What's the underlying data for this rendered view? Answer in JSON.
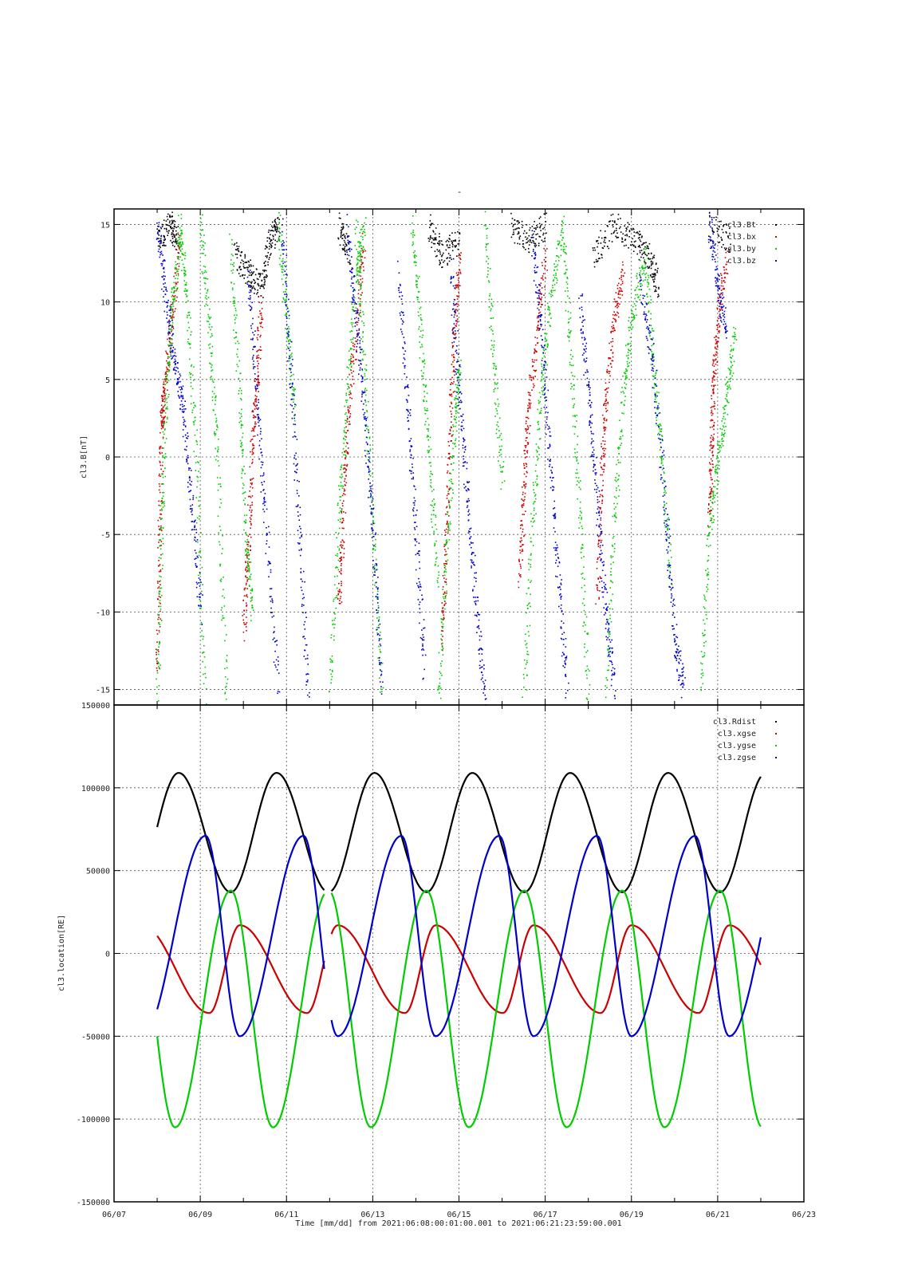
{
  "figure": {
    "title": "-",
    "footer": "Time [mm/dd]  from 2021:06:08:00:01:00.001  to  2021:06:21:23:59:00.001"
  },
  "colors": {
    "black": "#000000",
    "red": "#cc0000",
    "green": "#00cc00",
    "blue": "#0000cc",
    "grid": "#555555"
  },
  "chart_data": [
    {
      "type": "scatter",
      "ylabel": "cl3.B[nT]",
      "ylim": [
        -16,
        16
      ],
      "yticks": [
        15,
        10,
        5,
        0,
        -5,
        -10,
        -15
      ],
      "x_range_days": [
        "2021-06-07",
        "2021-06-23"
      ],
      "grid": true,
      "legend": "top-right",
      "series": [
        {
          "name": "cl3.Bt",
          "color": "#000000",
          "segments": [
            [
              [
                8.0,
                14
              ],
              [
                8.3,
                15
              ],
              [
                8.45,
                14
              ]
            ],
            [
              [
                9.8,
                13
              ],
              [
                10.1,
                12
              ],
              [
                10.4,
                11
              ],
              [
                10.6,
                14
              ],
              [
                10.8,
                15
              ]
            ],
            [
              [
                12.2,
                15
              ],
              [
                12.45,
                13
              ]
            ],
            [
              [
                14.3,
                15
              ],
              [
                14.6,
                13
              ],
              [
                15.0,
                14
              ]
            ],
            [
              [
                16.2,
                15
              ],
              [
                16.6,
                14
              ],
              [
                17.0,
                15
              ]
            ],
            [
              [
                18.1,
                13
              ],
              [
                18.6,
                15
              ],
              [
                19.1,
                14
              ],
              [
                19.4,
                13
              ],
              [
                19.6,
                11
              ]
            ],
            [
              [
                20.8,
                15
              ],
              [
                21.3,
                14
              ]
            ]
          ]
        },
        {
          "name": "cl3.bx",
          "color": "#cc0000",
          "segments": [
            [
              [
                8.0,
                -14
              ],
              [
                8.05,
                -5
              ],
              [
                8.1,
                2.6
              ],
              [
                8.15,
                4
              ],
              [
                8.3,
                8
              ],
              [
                8.5,
                14
              ]
            ],
            [
              [
                10.0,
                -11
              ],
              [
                10.1,
                -6
              ],
              [
                10.2,
                1
              ],
              [
                10.3,
                5
              ],
              [
                10.4,
                10
              ]
            ],
            [
              [
                12.2,
                -10
              ],
              [
                12.3,
                -4
              ],
              [
                12.4,
                2
              ],
              [
                12.6,
                8
              ],
              [
                12.8,
                14
              ]
            ],
            [
              [
                14.6,
                -12
              ],
              [
                14.7,
                -5
              ],
              [
                14.8,
                3
              ],
              [
                14.9,
                9
              ],
              [
                15.0,
                13
              ]
            ],
            [
              [
                16.4,
                -8
              ],
              [
                16.5,
                -2
              ],
              [
                16.6,
                3
              ],
              [
                16.8,
                8
              ],
              [
                17.0,
                13
              ]
            ],
            [
              [
                18.2,
                -9
              ],
              [
                18.3,
                -1
              ],
              [
                18.4,
                4
              ],
              [
                18.6,
                9
              ],
              [
                18.8,
                12
              ]
            ],
            [
              [
                20.8,
                -4
              ],
              [
                20.85,
                1
              ],
              [
                20.9,
                5
              ],
              [
                21.0,
                9
              ],
              [
                21.2,
                13
              ]
            ]
          ]
        },
        {
          "name": "cl3.by",
          "color": "#00cc00",
          "segments": [
            [
              [
                8.0,
                -15
              ],
              [
                8.1,
                -4
              ],
              [
                8.2,
                4
              ],
              [
                8.35,
                10
              ],
              [
                8.55,
                15
              ]
            ],
            [
              [
                8.5,
                15
              ],
              [
                8.7,
                10
              ],
              [
                8.9,
                0
              ],
              [
                9.1,
                -16
              ]
            ],
            [
              [
                9.0,
                15
              ],
              [
                9.2,
                8
              ],
              [
                9.4,
                0
              ],
              [
                9.6,
                -16
              ]
            ],
            [
              [
                9.7,
                14
              ],
              [
                9.9,
                4
              ],
              [
                10.05,
                -5
              ],
              [
                10.2,
                -10
              ]
            ],
            [
              [
                10.8,
                15
              ],
              [
                11.0,
                9
              ],
              [
                11.2,
                3
              ]
            ],
            [
              [
                12.0,
                -15
              ],
              [
                12.2,
                -4
              ],
              [
                12.4,
                4
              ],
              [
                12.6,
                12
              ],
              [
                12.8,
                15
              ]
            ],
            [
              [
                12.6,
                15
              ],
              [
                12.8,
                6
              ],
              [
                13.0,
                -5
              ],
              [
                13.2,
                -15
              ]
            ],
            [
              [
                13.9,
                15
              ],
              [
                14.1,
                8
              ],
              [
                14.3,
                0
              ],
              [
                14.5,
                -8
              ]
            ],
            [
              [
                14.5,
                -16
              ],
              [
                14.7,
                -6
              ],
              [
                14.9,
                2
              ],
              [
                15.0,
                6
              ]
            ],
            [
              [
                15.6,
                15
              ],
              [
                15.8,
                6
              ],
              [
                16.0,
                -2
              ]
            ],
            [
              [
                16.5,
                -15
              ],
              [
                16.7,
                -4
              ],
              [
                16.9,
                4
              ],
              [
                17.1,
                10
              ],
              [
                17.4,
                15
              ]
            ],
            [
              [
                17.4,
                15
              ],
              [
                17.6,
                6
              ],
              [
                17.8,
                -4
              ],
              [
                18.0,
                -16
              ]
            ],
            [
              [
                18.4,
                -15
              ],
              [
                18.6,
                -4
              ],
              [
                18.8,
                4
              ],
              [
                19.0,
                9
              ],
              [
                19.3,
                13
              ]
            ],
            [
              [
                19.3,
                13
              ],
              [
                19.5,
                6
              ],
              [
                19.7,
                0
              ],
              [
                19.9,
                -8
              ]
            ],
            [
              [
                20.6,
                -15
              ],
              [
                20.8,
                -5
              ],
              [
                21.0,
                0
              ],
              [
                21.2,
                4
              ],
              [
                21.4,
                8
              ]
            ]
          ]
        },
        {
          "name": "cl3.bz",
          "color": "#0000cc",
          "segments": [
            [
              [
                8.0,
                15
              ],
              [
                8.2,
                10
              ],
              [
                8.4,
                6
              ],
              [
                8.6,
                3
              ],
              [
                8.8,
                -3
              ],
              [
                9.0,
                -10
              ]
            ],
            [
              [
                10.1,
                12
              ],
              [
                10.3,
                4
              ],
              [
                10.5,
                -4
              ],
              [
                10.8,
                -15
              ]
            ],
            [
              [
                10.9,
                15
              ],
              [
                11.1,
                5
              ],
              [
                11.3,
                -5
              ],
              [
                11.5,
                -16
              ]
            ],
            [
              [
                12.4,
                15
              ],
              [
                12.6,
                9
              ],
              [
                12.8,
                3
              ],
              [
                13.0,
                -5
              ],
              [
                13.2,
                -15
              ]
            ],
            [
              [
                13.6,
                12
              ],
              [
                13.8,
                3
              ],
              [
                14.0,
                -5
              ],
              [
                14.2,
                -14
              ]
            ],
            [
              [
                14.8,
                12
              ],
              [
                15.0,
                4
              ],
              [
                15.2,
                -3
              ],
              [
                15.4,
                -10
              ],
              [
                15.6,
                -16
              ]
            ],
            [
              [
                16.7,
                14
              ],
              [
                16.9,
                8
              ],
              [
                17.1,
                0
              ],
              [
                17.3,
                -8
              ],
              [
                17.5,
                -15
              ]
            ],
            [
              [
                17.8,
                10
              ],
              [
                18.0,
                4
              ],
              [
                18.2,
                -3
              ],
              [
                18.4,
                -10
              ],
              [
                18.6,
                -15
              ]
            ],
            [
              [
                19.2,
                11
              ],
              [
                19.5,
                6
              ],
              [
                19.8,
                -4
              ],
              [
                20.0,
                -12
              ],
              [
                20.2,
                -15
              ]
            ],
            [
              [
                20.8,
                15
              ],
              [
                21.0,
                11
              ],
              [
                21.2,
                8
              ]
            ]
          ]
        }
      ]
    },
    {
      "type": "line",
      "ylabel": "cl3.location[RE]",
      "ylim": [
        -150000,
        150000
      ],
      "yticks": [
        150000,
        100000,
        50000,
        0,
        -50000,
        -100000,
        -150000
      ],
      "xlabel": "Time [mm/dd]",
      "xticks": [
        "06/07",
        "06/09",
        "06/11",
        "06/13",
        "06/15",
        "06/17",
        "06/19",
        "06/21",
        "06/23"
      ],
      "x_range_days": [
        "2021-06-07",
        "2021-06-23"
      ],
      "data_start": "2021-06-08",
      "data_end": "2021-06-21T23:59",
      "gap": [
        "2021-06-11T21:00",
        "2021-06-12T01:00"
      ],
      "grid": true,
      "legend": "top-right",
      "series": [
        {
          "name": "cl3.Rdist",
          "color": "#000000",
          "min": 37000,
          "max": 109000,
          "period_days": 2.27,
          "first_peak": "2021-06-08T12:00",
          "first_min": "2021-06-09T17:00"
        },
        {
          "name": "cl3.xgse",
          "color": "#cc0000",
          "min": -36000,
          "max": 17000,
          "period_days": 2.27,
          "first_min": "2021-06-09T05:00",
          "first_max": "2021-06-09T22:00"
        },
        {
          "name": "cl3.ygse",
          "color": "#00cc00",
          "min": -105000,
          "max": 38000,
          "period_days": 2.27,
          "first_min": "2021-06-08T10:00",
          "first_max": "2021-06-09T17:00"
        },
        {
          "name": "cl3.zgse",
          "color": "#0000cc",
          "min": -50000,
          "max": 71000,
          "period_days": 2.27,
          "first_max": "2021-06-09T03:00",
          "first_min": "2021-06-09T22:00"
        }
      ]
    }
  ]
}
